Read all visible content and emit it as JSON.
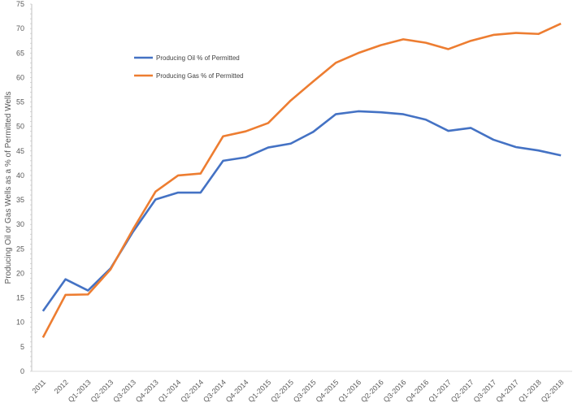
{
  "chart_data": {
    "type": "line",
    "title": "",
    "xlabel": "",
    "ylabel": "Producing Oil or Gas Wells as a % of Permitted Wells",
    "ylim": [
      0,
      75
    ],
    "ystep": 5,
    "grid": false,
    "legend_placement": "upper-left inside",
    "categories": [
      "2011",
      "2012",
      "Q1-2013",
      "Q2-2013",
      "Q3-2013",
      "Q4-2013",
      "Q1-2014",
      "Q2-2014",
      "Q3-2014",
      "Q4-2014",
      "Q1-2015",
      "Q2-2015",
      "Q3-2015",
      "Q4-2015",
      "Q1-2016",
      "Q2-2016",
      "Q3-2016",
      "Q4-2016",
      "Q1-2017",
      "Q2-2017",
      "Q3-2017",
      "Q4-2017",
      "Q1-2018",
      "Q2-2018"
    ],
    "series": [
      {
        "name": "Producing Oil % of Permitted",
        "color": "#4472C4",
        "values": [
          12.3,
          18.8,
          16.5,
          21.0,
          28.5,
          35.1,
          36.5,
          36.5,
          43.0,
          43.7,
          45.7,
          46.5,
          48.9,
          52.5,
          53.1,
          52.9,
          52.5,
          51.4,
          49.1,
          49.7,
          47.3,
          45.8,
          45.1,
          44.1
        ]
      },
      {
        "name": "Producing Gas % of Permitted",
        "color": "#ED7D31",
        "values": [
          6.9,
          15.6,
          15.7,
          20.8,
          29.0,
          36.7,
          40.0,
          40.4,
          48.0,
          49.0,
          50.7,
          55.3,
          59.2,
          63.0,
          65.0,
          66.6,
          67.8,
          67.1,
          65.8,
          67.5,
          68.7,
          69.1,
          68.9,
          71.0
        ]
      }
    ]
  }
}
